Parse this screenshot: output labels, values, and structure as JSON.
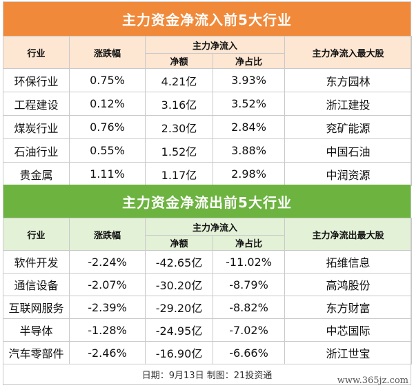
{
  "inflow": {
    "title": "主力资金净流入前5大行业",
    "headers": {
      "industry": "行业",
      "change": "涨跌幅",
      "main_net": "主力净流入",
      "net_amount": "净额",
      "net_ratio": "净占比",
      "top_stock": "主力净流入最大股"
    },
    "rows": [
      {
        "industry": "环保行业",
        "change": "0.75%",
        "net_amount": "4.21亿",
        "net_ratio": "3.93%",
        "top_stock": "东方园林"
      },
      {
        "industry": "工程建设",
        "change": "0.12%",
        "net_amount": "3.16亿",
        "net_ratio": "3.52%",
        "top_stock": "浙江建投"
      },
      {
        "industry": "煤炭行业",
        "change": "0.76%",
        "net_amount": "2.30亿",
        "net_ratio": "2.84%",
        "top_stock": "兖矿能源"
      },
      {
        "industry": "石油行业",
        "change": "0.55%",
        "net_amount": "1.52亿",
        "net_ratio": "3.88%",
        "top_stock": "中国石油"
      },
      {
        "industry": "贵金属",
        "change": "1.11%",
        "net_amount": "1.17亿",
        "net_ratio": "2.98%",
        "top_stock": "中润资源"
      }
    ]
  },
  "outflow": {
    "title": "主力资金净流出前5大行业",
    "headers": {
      "industry": "行业",
      "change": "涨跌幅",
      "main_net": "主力净流入",
      "net_amount": "净额",
      "net_ratio": "净占比",
      "top_stock": "主力净流出最大股"
    },
    "rows": [
      {
        "industry": "软件开发",
        "change": "-2.24%",
        "net_amount": "-42.65亿",
        "net_ratio": "-11.02%",
        "top_stock": "拓维信息"
      },
      {
        "industry": "通信设备",
        "change": "-2.07%",
        "net_amount": "-30.20亿",
        "net_ratio": "-8.79%",
        "top_stock": "高鸿股份"
      },
      {
        "industry": "互联网服务",
        "change": "-2.39%",
        "net_amount": "-29.20亿",
        "net_ratio": "-8.82%",
        "top_stock": "东方财富"
      },
      {
        "industry": "半导体",
        "change": "-1.28%",
        "net_amount": "-24.95亿",
        "net_ratio": "-7.02%",
        "top_stock": "中芯国际"
      },
      {
        "industry": "汽车零部件",
        "change": "-2.46%",
        "net_amount": "-16.90亿",
        "net_ratio": "-6.66%",
        "top_stock": "浙江世宝"
      }
    ]
  },
  "footer": "日期：9月13日 制图：21投资通",
  "watermark": "www.365jz.com",
  "colors": {
    "inflow_title": "#f08a3a",
    "inflow_header": "#fde6d2",
    "outflow_title": "#6cb33f",
    "outflow_header": "#e3f1d7"
  }
}
